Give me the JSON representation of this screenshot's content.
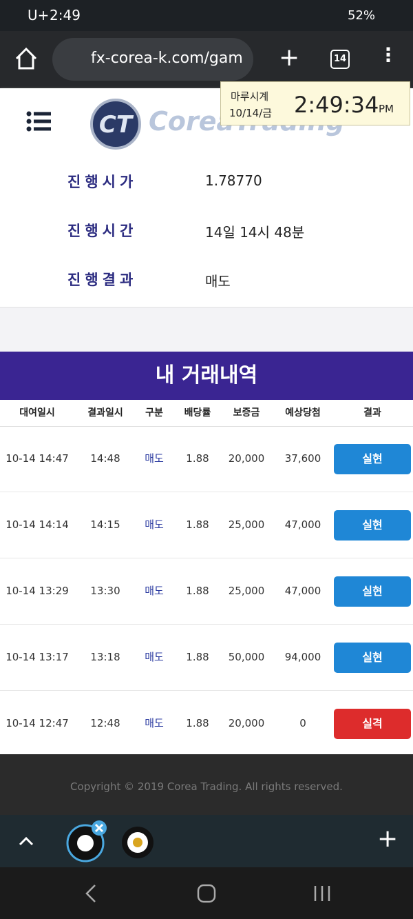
{
  "status_bar": {
    "carrier": "U+",
    "time": "2:49",
    "battery": "52%"
  },
  "browser": {
    "url": "fx-corea-k.com/gam",
    "tab_count": "14"
  },
  "clock_widget": {
    "name": "마루시계",
    "date": "10/14/금",
    "time": "2:49:34",
    "ampm": "PM"
  },
  "header": {
    "logo": "CoreaTrading"
  },
  "info": [
    {
      "label": "진행시가",
      "value": "1.78770"
    },
    {
      "label": "진행시간",
      "value": "14일 14시 48분"
    },
    {
      "label": "진행결과",
      "value": "매도"
    }
  ],
  "history": {
    "title": "내 거래내역",
    "columns": [
      "대여일시",
      "결과일시",
      "구분",
      "배당률",
      "보증금",
      "예상당첨",
      "결과"
    ],
    "rows": [
      [
        "10-14 14:47",
        "14:48",
        "매도",
        "1.88",
        "20,000",
        "37,600",
        "실현"
      ],
      [
        "10-14 14:14",
        "14:15",
        "매도",
        "1.88",
        "25,000",
        "47,000",
        "실현"
      ],
      [
        "10-14 13:29",
        "13:30",
        "매도",
        "1.88",
        "25,000",
        "47,000",
        "실현"
      ],
      [
        "10-14 13:17",
        "13:18",
        "매도",
        "1.88",
        "50,000",
        "94,000",
        "실현"
      ],
      [
        "10-14 12:47",
        "12:48",
        "매도",
        "1.88",
        "20,000",
        "0",
        "실격"
      ]
    ]
  },
  "footer": {
    "copyright": "Copyright © 2019 Corea Trading. All rights reserved."
  }
}
